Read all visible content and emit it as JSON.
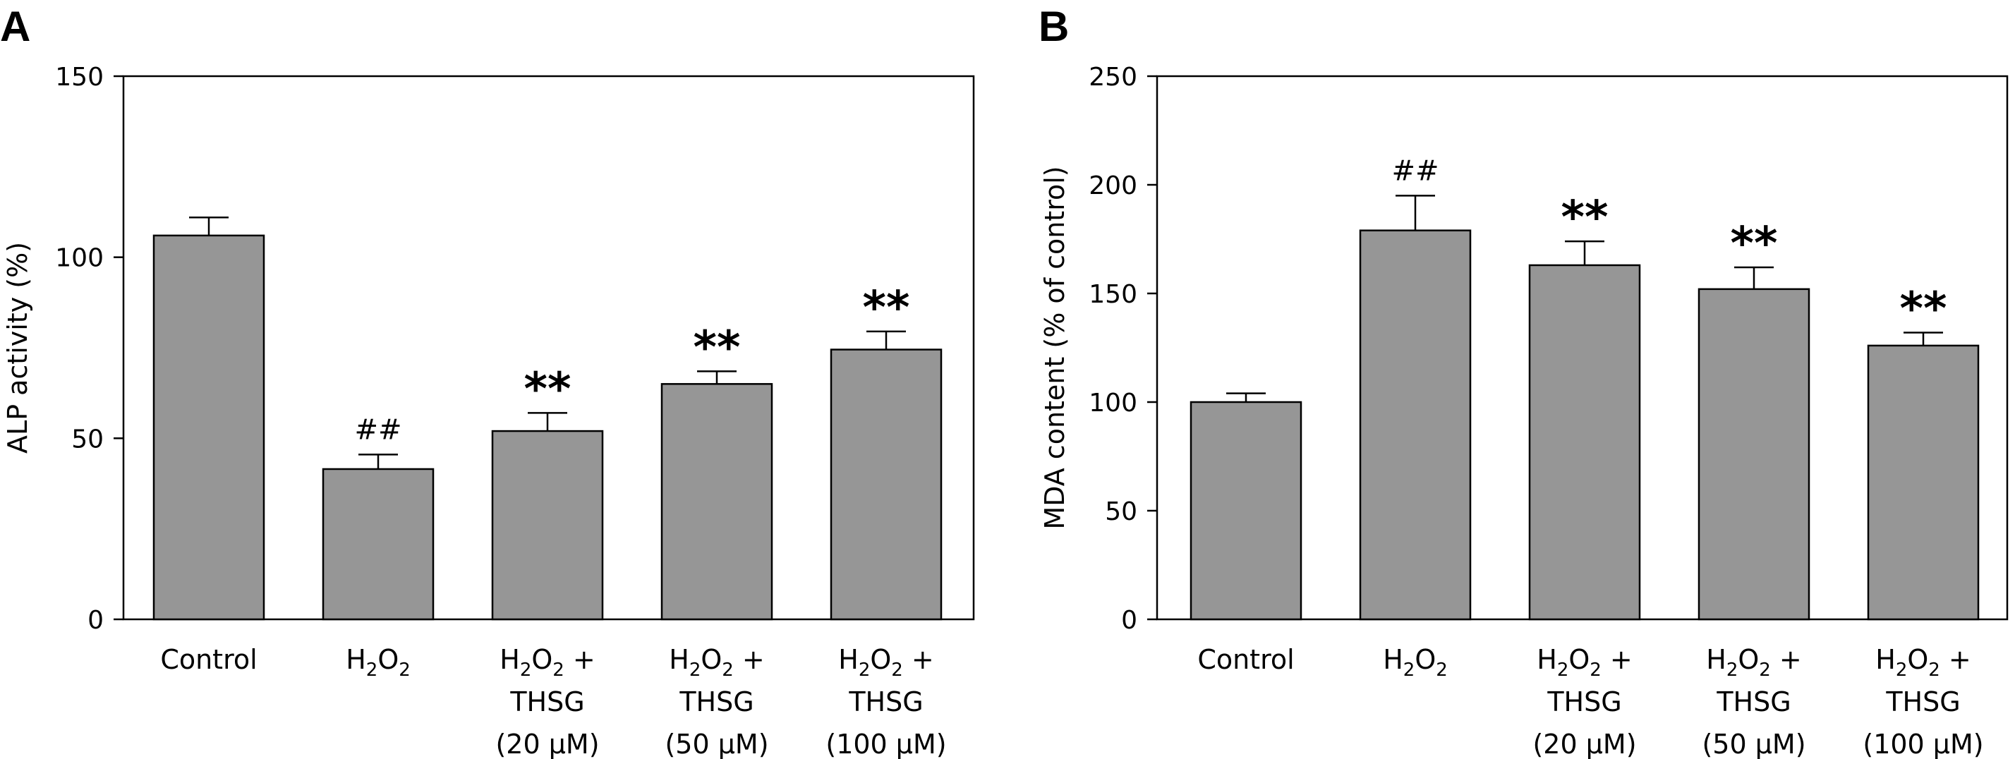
{
  "chart_data": [
    {
      "panel": "A",
      "type": "bar",
      "ylabel": "ALP activity (%)",
      "ylim": [
        0,
        150
      ],
      "yticks": [
        0,
        50,
        100,
        150
      ],
      "categories": [
        {
          "lines": [
            "Control"
          ]
        },
        {
          "lines": [
            "H₂O₂"
          ]
        },
        {
          "lines": [
            "H₂O₂ +",
            "THSG",
            "(20 μM)"
          ]
        },
        {
          "lines": [
            "H₂O₂ +",
            "THSG",
            "(50 μM)"
          ]
        },
        {
          "lines": [
            "H₂O₂ +",
            "THSG",
            "(100 μM)"
          ]
        }
      ],
      "values": [
        106,
        41.5,
        52,
        65,
        74.5
      ],
      "errors": [
        5,
        4,
        5,
        3.5,
        5
      ],
      "annotations": [
        "",
        "##",
        "**",
        "**",
        "**"
      ],
      "bar_color": "#969696"
    },
    {
      "panel": "B",
      "type": "bar",
      "ylabel": "MDA content (% of control)",
      "ylim": [
        0,
        250
      ],
      "yticks": [
        0,
        50,
        100,
        150,
        200,
        250
      ],
      "categories": [
        {
          "lines": [
            "Control"
          ]
        },
        {
          "lines": [
            "H₂O₂"
          ]
        },
        {
          "lines": [
            "H₂O₂ +",
            "THSG",
            "(20 μM)"
          ]
        },
        {
          "lines": [
            "H₂O₂ +",
            "THSG",
            "(50 μM)"
          ]
        },
        {
          "lines": [
            "H₂O₂ +",
            "THSG",
            "(100 μM)"
          ]
        }
      ],
      "values": [
        100,
        179,
        163,
        152,
        126
      ],
      "errors": [
        4,
        16,
        11,
        10,
        6
      ],
      "annotations": [
        "",
        "##",
        "**",
        "**",
        "**"
      ],
      "bar_color": "#969696"
    }
  ]
}
